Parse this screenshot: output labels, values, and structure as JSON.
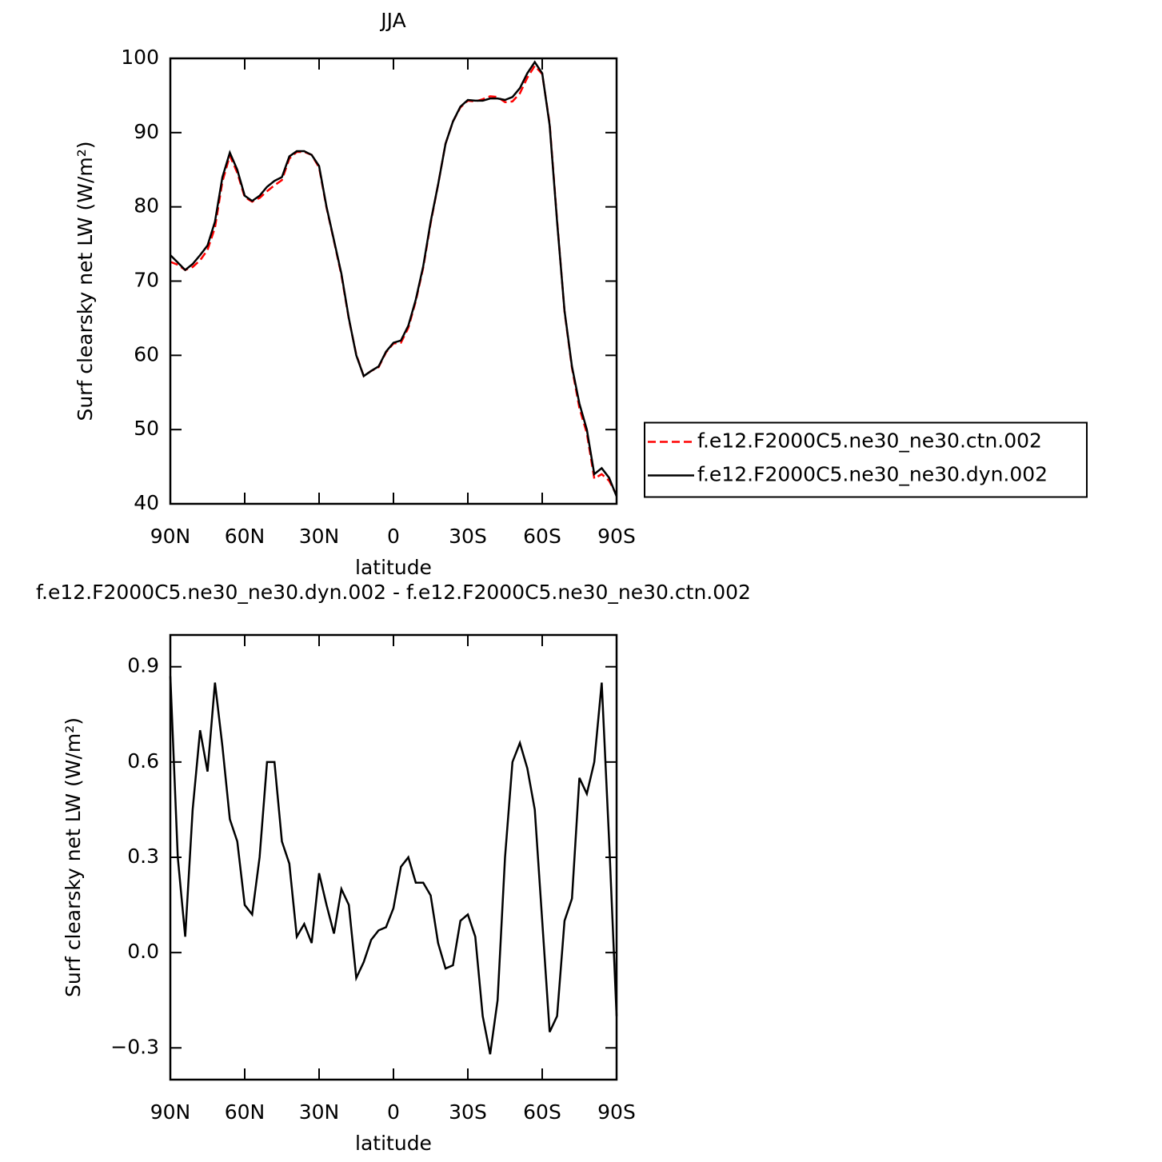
{
  "chart_data": [
    {
      "type": "line",
      "title": "JJA",
      "xlabel": "latitude",
      "ylabel": "Surf clearsky net LW (W/m²)",
      "x": [
        90,
        87,
        84,
        81,
        78,
        75,
        72,
        69,
        66,
        63,
        60,
        57,
        54,
        51,
        48,
        45,
        42,
        39,
        36,
        33,
        30,
        27,
        24,
        21,
        18,
        15,
        12,
        9,
        6,
        3,
        0,
        -3,
        -6,
        -9,
        -12,
        -15,
        -18,
        -21,
        -24,
        -27,
        -30,
        -33,
        -36,
        -39,
        -42,
        -45,
        -48,
        -51,
        -54,
        -57,
        -60,
        -63,
        -66,
        -69,
        -72,
        -75,
        -78,
        -81,
        -84,
        -87,
        -90
      ],
      "xlim": [
        90,
        -90
      ],
      "xticks": [
        {
          "value": 90,
          "label": "90N"
        },
        {
          "value": 60,
          "label": "60N"
        },
        {
          "value": 30,
          "label": "30N"
        },
        0,
        {
          "value": -30,
          "label": "30S"
        },
        {
          "value": -60,
          "label": "60S"
        },
        {
          "value": -90,
          "label": "90S"
        }
      ],
      "ylim": [
        40,
        100
      ],
      "yticks": [
        40,
        50,
        60,
        70,
        80,
        90,
        100
      ],
      "legend": "right",
      "series": [
        {
          "name": "f.e12.F2000C5.ne30_ne30.ctn.002",
          "color": "#ff0000",
          "dashed": true,
          "values": [
            72.6,
            72.2,
            71.5,
            71.9,
            72.8,
            74.2,
            77.2,
            83.4,
            86.9,
            84.6,
            81.3,
            80.7,
            81.2,
            82.1,
            82.9,
            83.6,
            86.5,
            87.4,
            87.4,
            87.0,
            85.3,
            79.9,
            75.4,
            70.8,
            64.9,
            60.1,
            57.2,
            57.9,
            58.4,
            60.4,
            61.6,
            61.7,
            63.7,
            67.3,
            71.8,
            77.8,
            83.0,
            88.5,
            91.5,
            93.4,
            94.3,
            94.2,
            94.5,
            94.9,
            94.8,
            94.1,
            94.2,
            95.3,
            97.4,
            99.0,
            97.9,
            91.2,
            78.2,
            65.9,
            58.3,
            52.9,
            49.5,
            43.4,
            44.0,
            43.1,
            41.2
          ]
        },
        {
          "name": "f.e12.F2000C5.ne30_ne30.dyn.002",
          "color": "#000000",
          "dashed": false,
          "values": [
            73.5,
            72.5,
            71.5,
            72.3,
            73.5,
            74.8,
            78,
            84,
            87.3,
            85,
            81.5,
            80.8,
            81.5,
            82.7,
            83.5,
            84,
            86.8,
            87.5,
            87.5,
            87,
            85.5,
            80,
            75.5,
            71,
            65,
            60,
            57.2,
            57.9,
            58.5,
            60.5,
            61.7,
            62,
            64,
            67.5,
            72,
            78,
            83,
            88.5,
            91.5,
            93.5,
            94.4,
            94.3,
            94.3,
            94.6,
            94.6,
            94.4,
            94.8,
            96,
            98,
            99.5,
            98,
            91,
            78,
            66,
            58.5,
            53.5,
            50,
            44,
            44.8,
            43.5,
            41
          ]
        }
      ]
    },
    {
      "type": "line",
      "title": "f.e12.F2000C5.ne30_ne30.dyn.002 - f.e12.F2000C5.ne30_ne30.ctn.002",
      "xlabel": "latitude",
      "ylabel": "Surf clearsky net LW (W/m²)",
      "x": [
        90,
        87,
        84,
        81,
        78,
        75,
        72,
        69,
        66,
        63,
        60,
        57,
        54,
        51,
        48,
        45,
        42,
        39,
        36,
        33,
        30,
        27,
        24,
        21,
        18,
        15,
        12,
        9,
        6,
        3,
        0,
        -3,
        -6,
        -9,
        -12,
        -15,
        -18,
        -21,
        -24,
        -27,
        -30,
        -33,
        -36,
        -39,
        -42,
        -45,
        -48,
        -51,
        -54,
        -57,
        -60,
        -63,
        -66,
        -69,
        -72,
        -75,
        -78,
        -81,
        -84,
        -87,
        -90
      ],
      "xlim": [
        90,
        -90
      ],
      "xticks": [
        {
          "value": 90,
          "label": "90N"
        },
        {
          "value": 60,
          "label": "60N"
        },
        {
          "value": 30,
          "label": "30N"
        },
        0,
        {
          "value": -30,
          "label": "30S"
        },
        {
          "value": -60,
          "label": "60S"
        },
        {
          "value": -90,
          "label": "90S"
        }
      ],
      "ylim": [
        -0.4,
        1.0
      ],
      "yticks": [
        {
          "value": -0.3,
          "label": "−0.3"
        },
        {
          "value": 0,
          "label": "0.0"
        },
        0.3,
        0.6,
        0.9
      ],
      "series": [
        {
          "color": "#000000",
          "dashed": false,
          "values": [
            0.87,
            0.3,
            0.05,
            0.45,
            0.7,
            0.57,
            0.85,
            0.65,
            0.42,
            0.35,
            0.15,
            0.12,
            0.3,
            0.6,
            0.6,
            0.35,
            0.28,
            0.05,
            0.09,
            0.03,
            0.25,
            0.15,
            0.06,
            0.2,
            0.15,
            -0.08,
            -0.03,
            0.04,
            0.07,
            0.08,
            0.14,
            0.27,
            0.3,
            0.22,
            0.22,
            0.18,
            0.03,
            -0.05,
            -0.04,
            0.1,
            0.12,
            0.05,
            -0.2,
            -0.32,
            -0.15,
            0.3,
            0.6,
            0.66,
            0.58,
            0.45,
            0.1,
            -0.25,
            -0.2,
            0.1,
            0.17,
            0.55,
            0.5,
            0.6,
            0.85,
            0.35,
            -0.2
          ]
        }
      ]
    }
  ]
}
